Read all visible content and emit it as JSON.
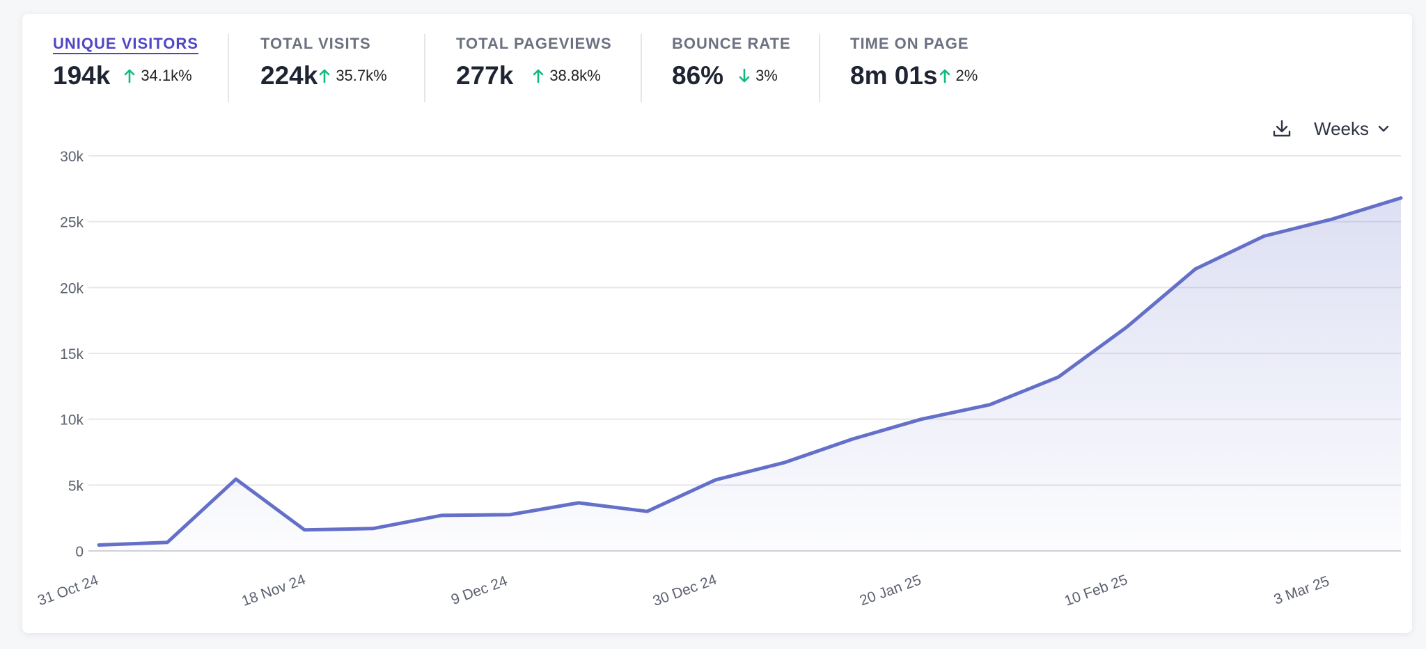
{
  "stats": [
    {
      "label": "UNIQUE VISITORS",
      "value": "194k",
      "change": "34.1k%",
      "direction": "up",
      "active": true
    },
    {
      "label": "TOTAL VISITS",
      "value": "224k",
      "change": "35.7k%",
      "direction": "up",
      "active": false
    },
    {
      "label": "TOTAL PAGEVIEWS",
      "value": "277k",
      "change": "38.8k%",
      "direction": "up",
      "active": false
    },
    {
      "label": "BOUNCE RATE",
      "value": "86%",
      "change": "3%",
      "direction": "down",
      "active": false
    },
    {
      "label": "TIME ON PAGE",
      "value": "8m 01s",
      "change": "2%",
      "direction": "up",
      "active": false
    }
  ],
  "tools": {
    "download_icon": "download-icon",
    "interval_label": "Weeks",
    "interval_icon": "chevron-down-icon"
  },
  "colors": {
    "accent": "#6470c8",
    "active_tab": "#4f46c5",
    "change_positive": "#10b981",
    "grid": "#e6e7ea"
  },
  "chart_data": {
    "type": "area",
    "x": [
      "31 Oct 24",
      "",
      "",
      "18 Nov 24",
      "",
      "",
      "9 Dec 24",
      "",
      "",
      "30 Dec 24",
      "",
      "",
      "20 Jan 25",
      "",
      "",
      "10 Feb 25",
      "",
      "",
      "3 Mar 25",
      ""
    ],
    "series": [
      {
        "values": [
          450,
          650,
          5450,
          1600,
          1700,
          2700,
          2750,
          3650,
          3000,
          5400,
          6700,
          8500,
          10000,
          11100,
          13200,
          17000,
          21400,
          23900,
          25200,
          26800
        ]
      }
    ],
    "xtick_labels": [
      "31 Oct 24",
      "18 Nov 24",
      "9 Dec 24",
      "30 Dec 24",
      "20 Jan 25",
      "10 Feb 25",
      "3 Mar 25"
    ],
    "ytick_labels": [
      "0",
      "5k",
      "10k",
      "15k",
      "20k",
      "25k",
      "30k"
    ],
    "ylim": [
      0,
      30000
    ],
    "grid": true
  }
}
